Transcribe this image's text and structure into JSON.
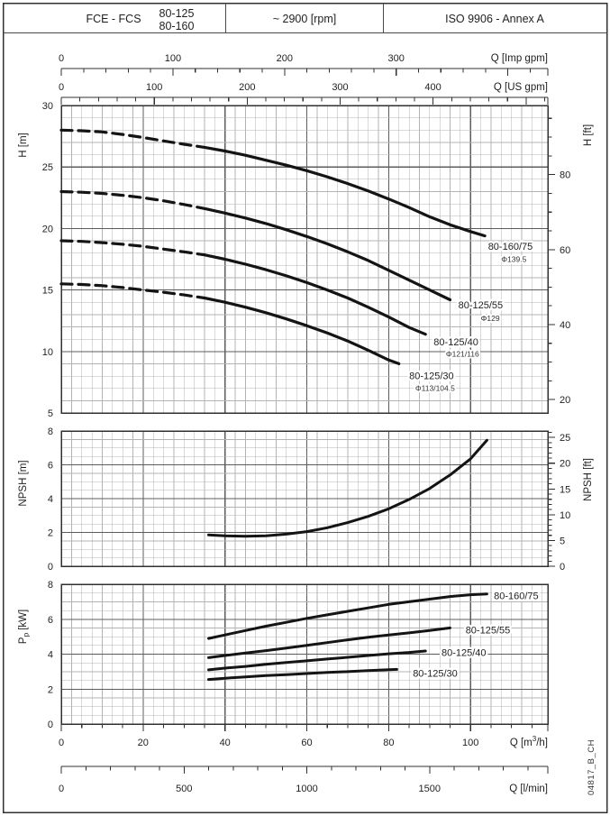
{
  "header": {
    "product": "FCE - FCS",
    "size_top": "80-125",
    "size_bottom": "80-160",
    "speed": "~ 2900 [rpm]",
    "standard": "ISO 9906 - Annex A"
  },
  "doc_code": "04817_B_CH",
  "colors": {
    "curve": "#141414",
    "grid_minor": "#b3b3b3",
    "grid_major": "#5c5c5c",
    "frame": "#303030",
    "text": "#1f1f1f",
    "background": "#ffffff"
  },
  "axes": {
    "imp_gpm": {
      "title": "Q [Imp gpm]",
      "ticks": [
        0,
        100,
        200,
        300
      ],
      "minor_step": 20
    },
    "us_gpm": {
      "title": "Q [US gpm]",
      "ticks": [
        0,
        100,
        200,
        300,
        400
      ],
      "minor_step": 20
    },
    "m3h": {
      "title_pre": "Q [m",
      "title_sup": "3",
      "title_post": "/h]",
      "ticks": [
        0,
        20,
        40,
        60,
        80,
        100
      ],
      "minor_step": 5
    },
    "lmin": {
      "title": "Q [l/min]",
      "ticks": [
        0,
        500,
        1000,
        1500
      ],
      "minor_step": 100
    },
    "H_m": {
      "title": "H [m]",
      "ticks": [
        30,
        25,
        20,
        15,
        10,
        5
      ]
    },
    "H_ft": {
      "title": "H [ft]",
      "ticks": [
        80,
        60,
        40,
        20
      ],
      "minor_step_ft": 5
    },
    "npsh_m": {
      "title": "NPSH [m]",
      "ticks": [
        8,
        6,
        4,
        2,
        0
      ]
    },
    "npsh_ft": {
      "title": "NPSH [ft]",
      "ticks": [
        25,
        20,
        15,
        10,
        5,
        0
      ],
      "minor_step_ft": 1
    },
    "p_kw": {
      "title_pre": "P",
      "title_sub": "p",
      "title_post": "[kW]",
      "ticks": [
        8,
        6,
        4,
        2,
        0
      ]
    }
  },
  "chart_data": [
    {
      "id": "head-flow",
      "type": "line",
      "title": "Head vs flow",
      "xlabel": "Q [m3/h]",
      "ylabel": "H [m]",
      "y2label": "H [ft]",
      "xlim": [
        0,
        118.9
      ],
      "ylim": [
        5,
        30
      ],
      "grid": "major+minor",
      "legend_position": "inline-right",
      "series": [
        {
          "name": "80-160/75",
          "impeller": "Φ139.5",
          "dashed_until": 35,
          "points": [
            [
              0,
              28
            ],
            [
              5,
              27.95
            ],
            [
              10,
              27.85
            ],
            [
              15,
              27.65
            ],
            [
              20,
              27.4
            ],
            [
              25,
              27.12
            ],
            [
              30,
              26.85
            ],
            [
              35,
              26.6
            ],
            [
              40,
              26.3
            ],
            [
              45,
              25.95
            ],
            [
              50,
              25.55
            ],
            [
              55,
              25.15
            ],
            [
              60,
              24.7
            ],
            [
              65,
              24.2
            ],
            [
              70,
              23.65
            ],
            [
              75,
              23.05
            ],
            [
              80,
              22.4
            ],
            [
              85,
              21.7
            ],
            [
              90,
              20.95
            ],
            [
              95,
              20.3
            ],
            [
              100,
              19.75
            ],
            [
              103.5,
              19.4
            ]
          ],
          "label_pos": [
            104.3,
            18.55
          ],
          "impeller_pos": [
            107.5,
            17.5
          ]
        },
        {
          "name": "80-125/55",
          "impeller": "Φ129",
          "dashed_until": 36,
          "points": [
            [
              0,
              23
            ],
            [
              5,
              22.95
            ],
            [
              10,
              22.85
            ],
            [
              15,
              22.7
            ],
            [
              20,
              22.5
            ],
            [
              25,
              22.25
            ],
            [
              30,
              21.95
            ],
            [
              36,
              21.55
            ],
            [
              40,
              21.25
            ],
            [
              45,
              20.85
            ],
            [
              50,
              20.4
            ],
            [
              55,
              19.9
            ],
            [
              60,
              19.35
            ],
            [
              65,
              18.75
            ],
            [
              70,
              18.1
            ],
            [
              75,
              17.4
            ],
            [
              80,
              16.6
            ],
            [
              85,
              15.8
            ],
            [
              90,
              15.0
            ],
            [
              95,
              14.2
            ]
          ],
          "label_pos": [
            97,
            13.8
          ],
          "impeller_pos": [
            102.5,
            12.7
          ]
        },
        {
          "name": "80-125/40",
          "impeller": "Φ121/116",
          "dashed_until": 35,
          "points": [
            [
              0,
              19
            ],
            [
              5,
              18.95
            ],
            [
              10,
              18.85
            ],
            [
              15,
              18.72
            ],
            [
              20,
              18.55
            ],
            [
              25,
              18.32
            ],
            [
              30,
              18.1
            ],
            [
              35,
              17.85
            ],
            [
              40,
              17.5
            ],
            [
              45,
              17.1
            ],
            [
              50,
              16.65
            ],
            [
              55,
              16.15
            ],
            [
              60,
              15.6
            ],
            [
              65,
              15.0
            ],
            [
              70,
              14.35
            ],
            [
              75,
              13.6
            ],
            [
              80,
              12.8
            ],
            [
              85,
              11.95
            ],
            [
              89,
              11.4
            ]
          ],
          "label_pos": [
            91,
            10.8
          ],
          "impeller_pos": [
            94,
            9.8
          ]
        },
        {
          "name": "80-125/30",
          "impeller": "Φ113/104.5",
          "dashed_until": 35,
          "points": [
            [
              0,
              15.5
            ],
            [
              5,
              15.45
            ],
            [
              10,
              15.35
            ],
            [
              15,
              15.2
            ],
            [
              20,
              15.0
            ],
            [
              25,
              14.82
            ],
            [
              30,
              14.6
            ],
            [
              35,
              14.35
            ],
            [
              40,
              14.0
            ],
            [
              45,
              13.6
            ],
            [
              50,
              13.15
            ],
            [
              55,
              12.65
            ],
            [
              60,
              12.1
            ],
            [
              65,
              11.5
            ],
            [
              70,
              10.85
            ],
            [
              75,
              10.1
            ],
            [
              80,
              9.3
            ],
            [
              82.5,
              9.0
            ]
          ],
          "label_pos": [
            85,
            8.05
          ],
          "impeller_pos": [
            86.5,
            7.0
          ]
        }
      ]
    },
    {
      "id": "npsh",
      "type": "line",
      "title": "NPSH vs flow",
      "xlabel": "Q [m3/h]",
      "ylabel": "NPSH [m]",
      "y2label": "NPSH [ft]",
      "xlim": [
        0,
        118.9
      ],
      "ylim": [
        0,
        8
      ],
      "grid": "major+minor",
      "series": [
        {
          "name": "NPSH",
          "points": [
            [
              36,
              1.85
            ],
            [
              40,
              1.8
            ],
            [
              45,
              1.77
            ],
            [
              50,
              1.8
            ],
            [
              55,
              1.9
            ],
            [
              60,
              2.05
            ],
            [
              65,
              2.28
            ],
            [
              70,
              2.58
            ],
            [
              75,
              2.95
            ],
            [
              80,
              3.4
            ],
            [
              85,
              3.95
            ],
            [
              90,
              4.6
            ],
            [
              95,
              5.4
            ],
            [
              100,
              6.35
            ],
            [
              104,
              7.45
            ]
          ]
        }
      ]
    },
    {
      "id": "power",
      "type": "line",
      "title": "Pump power input vs flow",
      "xlabel": "Q [m3/h]",
      "ylabel": "Pp [kW]",
      "xlim": [
        0,
        118.9
      ],
      "ylim": [
        0,
        8
      ],
      "grid": "major+minor",
      "legend_position": "inline-right",
      "series": [
        {
          "name": "80-160/75",
          "points": [
            [
              36,
              4.9
            ],
            [
              40,
              5.1
            ],
            [
              45,
              5.35
            ],
            [
              50,
              5.6
            ],
            [
              55,
              5.82
            ],
            [
              60,
              6.05
            ],
            [
              65,
              6.25
            ],
            [
              70,
              6.45
            ],
            [
              75,
              6.65
            ],
            [
              80,
              6.85
            ],
            [
              85,
              7.0
            ],
            [
              90,
              7.15
            ],
            [
              95,
              7.3
            ],
            [
              100,
              7.4
            ],
            [
              104,
              7.45
            ]
          ],
          "label_pos": [
            105.7,
            7.35
          ]
        },
        {
          "name": "80-125/55",
          "points": [
            [
              36,
              3.8
            ],
            [
              40,
              3.92
            ],
            [
              45,
              4.06
            ],
            [
              50,
              4.2
            ],
            [
              55,
              4.35
            ],
            [
              60,
              4.5
            ],
            [
              65,
              4.66
            ],
            [
              70,
              4.82
            ],
            [
              75,
              4.97
            ],
            [
              80,
              5.1
            ],
            [
              85,
              5.22
            ],
            [
              90,
              5.35
            ],
            [
              95,
              5.5
            ]
          ],
          "label_pos": [
            98.8,
            5.4
          ]
        },
        {
          "name": "80-125/40",
          "points": [
            [
              36,
              3.1
            ],
            [
              40,
              3.2
            ],
            [
              45,
              3.3
            ],
            [
              50,
              3.42
            ],
            [
              55,
              3.52
            ],
            [
              60,
              3.62
            ],
            [
              65,
              3.72
            ],
            [
              70,
              3.82
            ],
            [
              75,
              3.92
            ],
            [
              80,
              4.02
            ],
            [
              85,
              4.1
            ],
            [
              89,
              4.18
            ]
          ],
          "label_pos": [
            92.9,
            4.1
          ]
        },
        {
          "name": "80-125/30",
          "points": [
            [
              36,
              2.55
            ],
            [
              40,
              2.62
            ],
            [
              45,
              2.7
            ],
            [
              50,
              2.77
            ],
            [
              55,
              2.83
            ],
            [
              60,
              2.89
            ],
            [
              65,
              2.95
            ],
            [
              70,
              3.0
            ],
            [
              75,
              3.06
            ],
            [
              80,
              3.11
            ],
            [
              82,
              3.13
            ]
          ],
          "label_pos": [
            85.9,
            2.92
          ]
        }
      ]
    }
  ]
}
